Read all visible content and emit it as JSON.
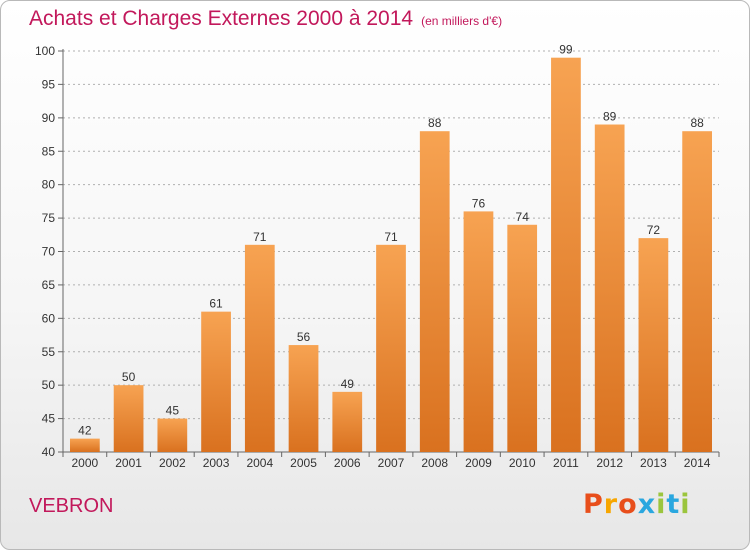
{
  "header": {
    "title": "Achats et Charges Externes 2000 à 2014",
    "subtitle": "(en milliers d'€)"
  },
  "footer": {
    "commune": "VEBRON",
    "logo_text": "Proxiti",
    "logo_colors": [
      "#e84e1b",
      "#f7a600",
      "#e84e1b",
      "#2aa7df",
      "#9bc53d",
      "#2aa7df",
      "#9bc53d"
    ]
  },
  "chart_data": {
    "type": "bar",
    "title": "Achats et Charges Externes 2000 à 2014",
    "subtitle": "(en milliers d'€)",
    "categories": [
      "2000",
      "2001",
      "2002",
      "2003",
      "2004",
      "2005",
      "2006",
      "2007",
      "2008",
      "2009",
      "2010",
      "2011",
      "2012",
      "2013",
      "2014"
    ],
    "values": [
      42,
      50,
      45,
      61,
      71,
      56,
      49,
      71,
      88,
      76,
      74,
      99,
      89,
      72,
      88
    ],
    "ylim": [
      40,
      100
    ],
    "yticks": [
      40,
      45,
      50,
      55,
      60,
      65,
      70,
      75,
      80,
      85,
      90,
      95,
      100
    ],
    "grid": true,
    "bar_color_top": "#f7a352",
    "bar_color_bottom": "#d9711f",
    "grid_color": "#b0b0b0"
  }
}
